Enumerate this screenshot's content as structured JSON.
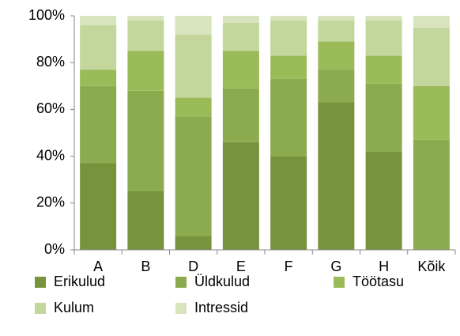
{
  "chart_data": {
    "type": "stacked_bar",
    "categories": [
      "A",
      "B",
      "D",
      "E",
      "F",
      "G",
      "H",
      "Kõik"
    ],
    "series": [
      {
        "name": "Erikulud",
        "color": "#77933c",
        "values": [
          37,
          25,
          6,
          46,
          40,
          63,
          42,
          0
        ]
      },
      {
        "name": "Üldkulud",
        "color": "#8cab4f",
        "values": [
          33,
          43,
          51,
          23,
          33,
          14,
          29,
          47
        ]
      },
      {
        "name": "Töötasu",
        "color": "#9bbb59",
        "values": [
          7,
          17,
          8,
          16,
          10,
          12,
          12,
          23
        ]
      },
      {
        "name": "Kulum",
        "color": "#c3d69b",
        "values": [
          19,
          13,
          27,
          12,
          15,
          9,
          15,
          25
        ]
      },
      {
        "name": "Intressid",
        "color": "#d7e4bd",
        "values": [
          4,
          2,
          8,
          3,
          2,
          2,
          2,
          5
        ]
      }
    ],
    "ylim": [
      0,
      100
    ],
    "yticks": [
      {
        "value": 0,
        "label": "0%"
      },
      {
        "value": 20,
        "label": "20%"
      },
      {
        "value": 40,
        "label": "40%"
      },
      {
        "value": 60,
        "label": "60%"
      },
      {
        "value": 80,
        "label": "80%"
      },
      {
        "value": 100,
        "label": "100%"
      }
    ]
  }
}
